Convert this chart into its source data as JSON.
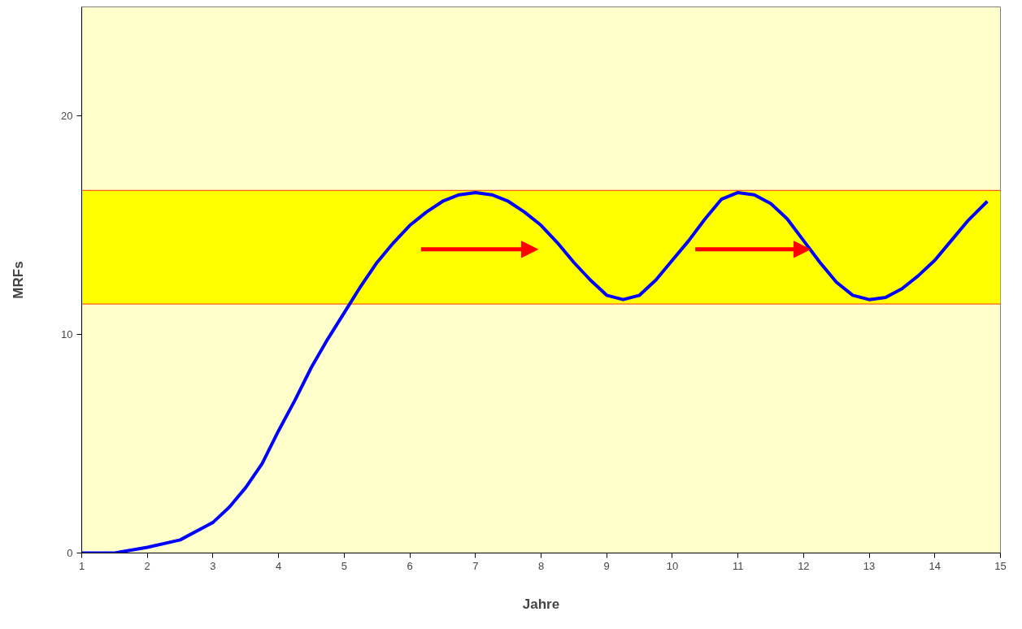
{
  "chart_data": {
    "type": "line",
    "xlabel": "Jahre",
    "ylabel": "MRFs",
    "x": [
      1,
      1.5,
      2,
      2.5,
      3,
      3.25,
      3.5,
      3.75,
      4,
      4.25,
      4.5,
      4.75,
      5,
      5.25,
      5.5,
      5.75,
      6,
      6.25,
      6.5,
      6.75,
      7,
      7.25,
      7.5,
      7.75,
      8,
      8.25,
      8.5,
      8.75,
      9,
      9.25,
      9.5,
      9.75,
      10,
      10.25,
      10.5,
      10.75,
      11,
      11.25,
      11.5,
      11.75,
      12,
      12.25,
      12.5,
      12.75,
      13,
      13.25,
      13.5,
      13.75,
      14,
      14.25,
      14.5,
      14.8
    ],
    "series": [
      {
        "color": "#0000ff",
        "values": [
          0,
          0,
          0.26,
          0.6,
          1.4,
          2.1,
          3.0,
          4.1,
          5.6,
          7.0,
          8.5,
          9.8,
          11.0,
          12.2,
          13.3,
          14.2,
          15.0,
          15.6,
          16.1,
          16.4,
          16.5,
          16.4,
          16.1,
          15.6,
          15.0,
          14.2,
          13.3,
          12.5,
          11.8,
          11.6,
          11.8,
          12.5,
          13.4,
          14.3,
          15.3,
          16.2,
          16.5,
          16.4,
          16.0,
          15.3,
          14.3,
          13.3,
          12.4,
          11.8,
          11.6,
          11.7,
          12.1,
          12.7,
          13.4,
          14.3,
          15.2,
          16.1
        ]
      }
    ],
    "bands": [
      {
        "axis": "y",
        "from": 11.4,
        "to": 16.6,
        "color": "#ffff00"
      }
    ],
    "ref_lines": [
      {
        "axis": "y",
        "value": 11.4,
        "color": "#ff3300"
      },
      {
        "axis": "y",
        "value": 16.6,
        "color": "#ff3300"
      }
    ],
    "xlim": [
      1,
      15
    ],
    "ylim": [
      0,
      25
    ],
    "xticks": [
      1,
      2,
      3,
      4,
      5,
      6,
      7,
      8,
      9,
      10,
      11,
      12,
      13,
      14,
      15
    ],
    "yticks": [
      0,
      10,
      20
    ],
    "grid": false,
    "marker": "none",
    "line_style": "solid"
  }
}
